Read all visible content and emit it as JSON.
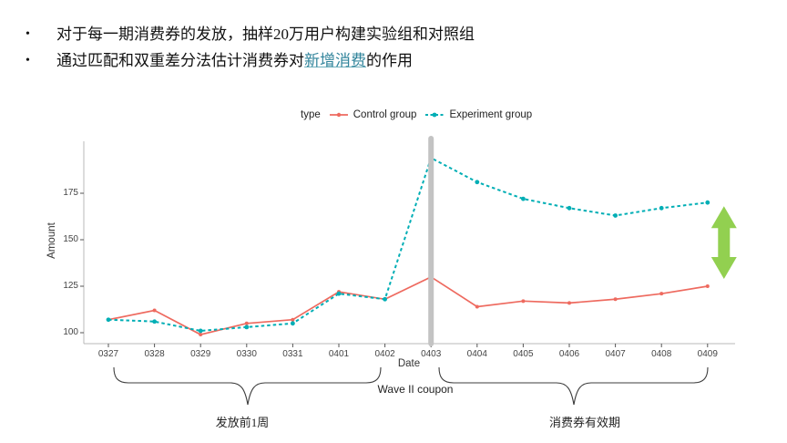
{
  "slide": {
    "bullet_glyph": "•",
    "bullet1": "对于每一期消费券的发放，抽样20万用户构建实验组和对照组",
    "bullet2_prefix": "通过匹配和双重差分法估计消费券对",
    "bullet2_link": "新增消费",
    "bullet2_suffix": "的作用"
  },
  "annotations": {
    "wave_label": "Wave II coupon",
    "left_brace_label": "发放前1周",
    "right_brace_label": "消费券有效期"
  },
  "colors": {
    "link_accent": "#31849b",
    "control": "#ee6a5f",
    "experiment": "#00aeb5",
    "event_bar": "#c3c3c3",
    "difference_arrow": "#92d050",
    "axis_line": "#b9b9b9",
    "tick_mark": "#555555"
  },
  "chart_data": {
    "type": "line",
    "xlabel": "Date",
    "ylabel": "Amount",
    "legend_title": "type",
    "legend_position": "top",
    "grid": false,
    "categories": [
      "0327",
      "0328",
      "0329",
      "0330",
      "0331",
      "0401",
      "0402",
      "0403",
      "0404",
      "0405",
      "0406",
      "0407",
      "0408",
      "0409"
    ],
    "yticks": [
      100,
      125,
      150,
      175
    ],
    "ylim": [
      94,
      203
    ],
    "series": [
      {
        "name": "Control group",
        "style": "solid",
        "color": "#ee6a5f",
        "values": [
          107,
          112,
          99,
          105,
          107,
          122,
          118,
          130,
          114,
          117,
          116,
          118,
          121,
          125
        ]
      },
      {
        "name": "Experiment group",
        "style": "dashed",
        "color": "#00aeb5",
        "values": [
          107,
          106,
          101,
          103,
          105,
          121,
          118,
          194,
          181,
          172,
          167,
          163,
          167,
          170
        ]
      }
    ],
    "event_marker": {
      "category": "0403",
      "color": "#c3c3c3"
    },
    "difference_arrow": {
      "color": "#92d050",
      "between_values": [
        125,
        170
      ],
      "at_category": "0409"
    }
  }
}
